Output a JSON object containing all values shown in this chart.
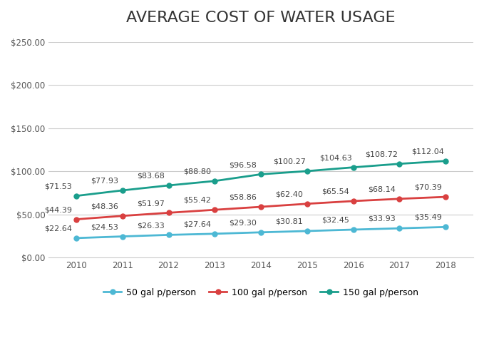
{
  "title": "AVERAGE COST OF WATER USAGE",
  "years": [
    2010,
    2011,
    2012,
    2013,
    2014,
    2015,
    2016,
    2017,
    2018
  ],
  "series": [
    {
      "label": "50 gal p/person",
      "values": [
        22.64,
        24.53,
        26.33,
        27.64,
        29.3,
        30.81,
        32.45,
        33.93,
        35.49
      ],
      "color": "#4db8d4",
      "marker": "o"
    },
    {
      "label": "100 gal p/person",
      "values": [
        44.39,
        48.36,
        51.97,
        55.42,
        58.86,
        62.4,
        65.54,
        68.14,
        70.39
      ],
      "color": "#d94040",
      "marker": "o"
    },
    {
      "label": "150 gal p/person",
      "values": [
        71.53,
        77.93,
        83.68,
        88.8,
        96.58,
        100.27,
        104.63,
        108.72,
        112.04
      ],
      "color": "#1a9e8c",
      "marker": "o"
    }
  ],
  "ylim": [
    0,
    250
  ],
  "yticks": [
    0,
    50,
    100,
    150,
    200,
    250
  ],
  "ytick_labels": [
    "$0.00",
    "$50.00",
    "$100.00",
    "$150.00",
    "$200.00",
    "$250.00"
  ],
  "background_color": "#ffffff",
  "grid_color": "#cccccc",
  "title_fontsize": 16,
  "label_fontsize": 8.5,
  "annotation_fontsize": 8,
  "legend_fontsize": 9
}
